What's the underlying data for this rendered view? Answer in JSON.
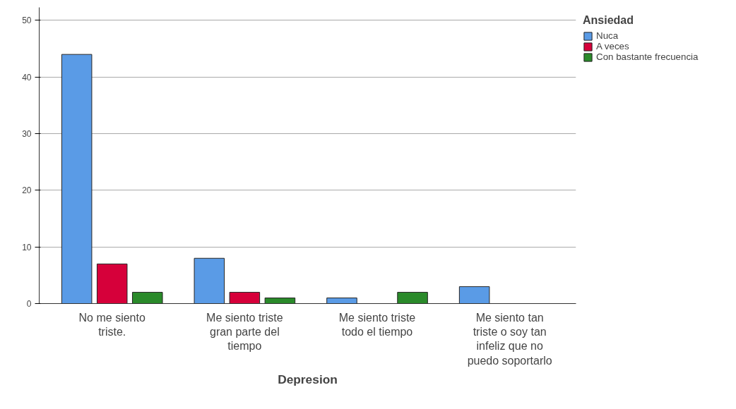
{
  "chart_data": {
    "type": "bar",
    "xlabel": "Depresion",
    "legend_title": "Ansiedad",
    "categories": [
      "No me siento triste.",
      "Me siento triste gran parte del tiempo",
      "Me siento triste todo el tiempo",
      "Me siento tan triste o soy tan infeliz que no puedo soportarlo"
    ],
    "series": [
      {
        "name": "Nuca",
        "color": "#5a9be6",
        "values": [
          44,
          8,
          1,
          3
        ]
      },
      {
        "name": "A veces",
        "color": "#d6003a",
        "values": [
          7,
          2,
          null,
          null
        ]
      },
      {
        "name": "Con bastante frecuencia",
        "color": "#2a8a2a",
        "values": [
          2,
          1,
          2,
          null
        ]
      }
    ],
    "ylim": [
      0,
      52.3
    ],
    "yticks": [
      0,
      10,
      20,
      30,
      40,
      50
    ],
    "grid": "y",
    "legend": "top right"
  }
}
